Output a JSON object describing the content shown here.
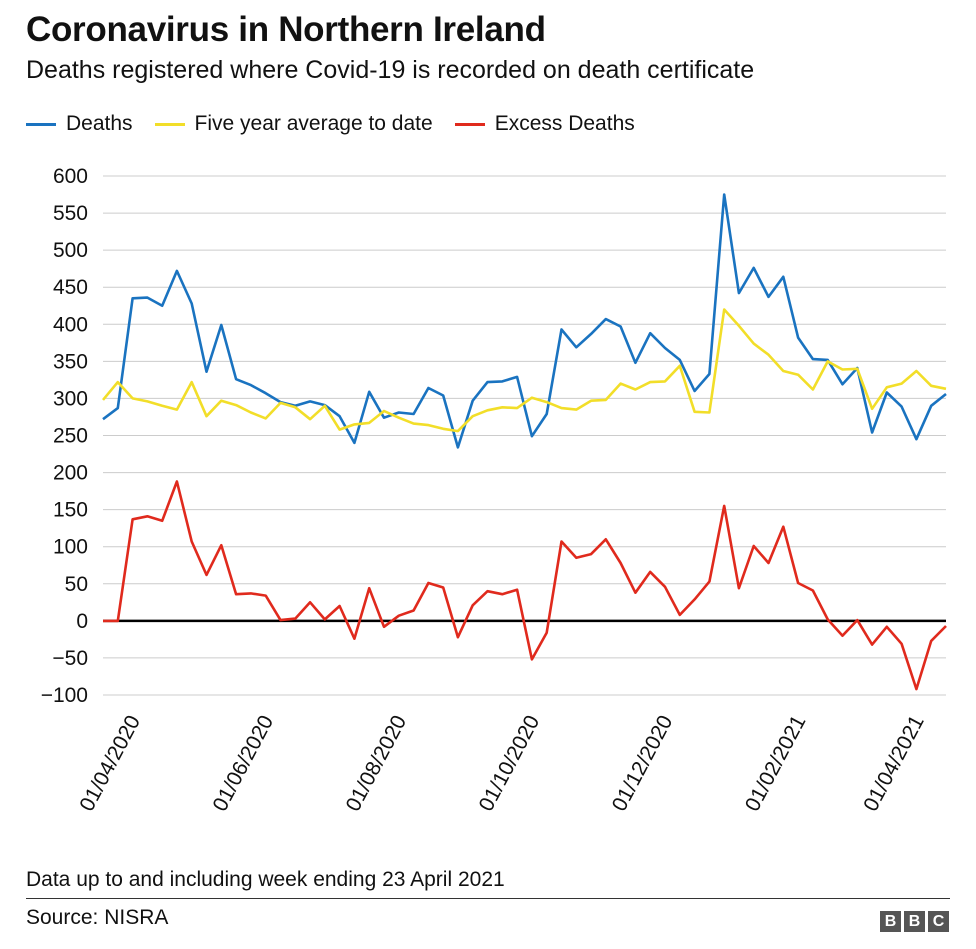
{
  "title": "Coronavirus in Northern Ireland",
  "subtitle": "Deaths registered where Covid-19 is recorded on death certificate",
  "note": "Data up to and including week ending 23 April 2021",
  "source": "Source: NISRA",
  "logo": [
    "B",
    "B",
    "C"
  ],
  "chart_data": {
    "type": "line",
    "ylim": [
      -100,
      600
    ],
    "yticks": [
      600,
      550,
      500,
      450,
      400,
      350,
      300,
      250,
      200,
      150,
      100,
      50,
      0,
      -50,
      -100
    ],
    "ytick_labels": [
      "600",
      "550",
      "500",
      "450",
      "400",
      "350",
      "300",
      "250",
      "200",
      "150",
      "100",
      "50",
      "0",
      "−50",
      "−100"
    ],
    "xticks": [
      {
        "label": "01/04/2020",
        "x": 2
      },
      {
        "label": "01/06/2020",
        "x": 11
      },
      {
        "label": "01/08/2020",
        "x": 20
      },
      {
        "label": "01/10/2020",
        "x": 29
      },
      {
        "label": "01/12/2020",
        "x": 38
      },
      {
        "label": "01/02/2021",
        "x": 47
      },
      {
        "label": "01/04/2021",
        "x": 55
      }
    ],
    "grid": true,
    "legend_position": "top-left",
    "series": [
      {
        "name": "Deaths",
        "color": "#1a73c0",
        "values": [
          272,
          287,
          435,
          436,
          425,
          472,
          428,
          336,
          399,
          326,
          318,
          307,
          295,
          290,
          296,
          291,
          276,
          240,
          309,
          274,
          281,
          279,
          314,
          304,
          234,
          297,
          322,
          323,
          329,
          249,
          279,
          393,
          369,
          387,
          407,
          397,
          348,
          388,
          368,
          352,
          310,
          333,
          575,
          442,
          476,
          437,
          464,
          382,
          353,
          352,
          319,
          341,
          254,
          308,
          289,
          245,
          290,
          306
        ]
      },
      {
        "name": "Five year average to date",
        "color": "#f2de29",
        "values": [
          298,
          322,
          300,
          296,
          290,
          285,
          322,
          276,
          297,
          291,
          281,
          273,
          294,
          288,
          272,
          290,
          258,
          265,
          267,
          283,
          274,
          266,
          264,
          259,
          256,
          276,
          284,
          288,
          287,
          301,
          295,
          287,
          285,
          297,
          298,
          320,
          312,
          322,
          323,
          344,
          282,
          281,
          420,
          398,
          374,
          359,
          337,
          332,
          312,
          350,
          339,
          340,
          286,
          315,
          320,
          337,
          317,
          313
        ]
      },
      {
        "name": "Excess Deaths",
        "color": "#e02a1d",
        "values": [
          0,
          0,
          137,
          141,
          135,
          188,
          107,
          62,
          102,
          36,
          37,
          34,
          1,
          3,
          25,
          2,
          20,
          -24,
          44,
          -8,
          7,
          14,
          51,
          45,
          -22,
          21,
          40,
          36,
          42,
          -52,
          -16,
          107,
          85,
          90,
          110,
          78,
          38,
          66,
          46,
          8,
          29,
          53,
          155,
          44,
          101,
          78,
          127,
          51,
          41,
          2,
          -20,
          1,
          -32,
          -8,
          -31,
          -92,
          -27,
          -7
        ]
      }
    ]
  }
}
